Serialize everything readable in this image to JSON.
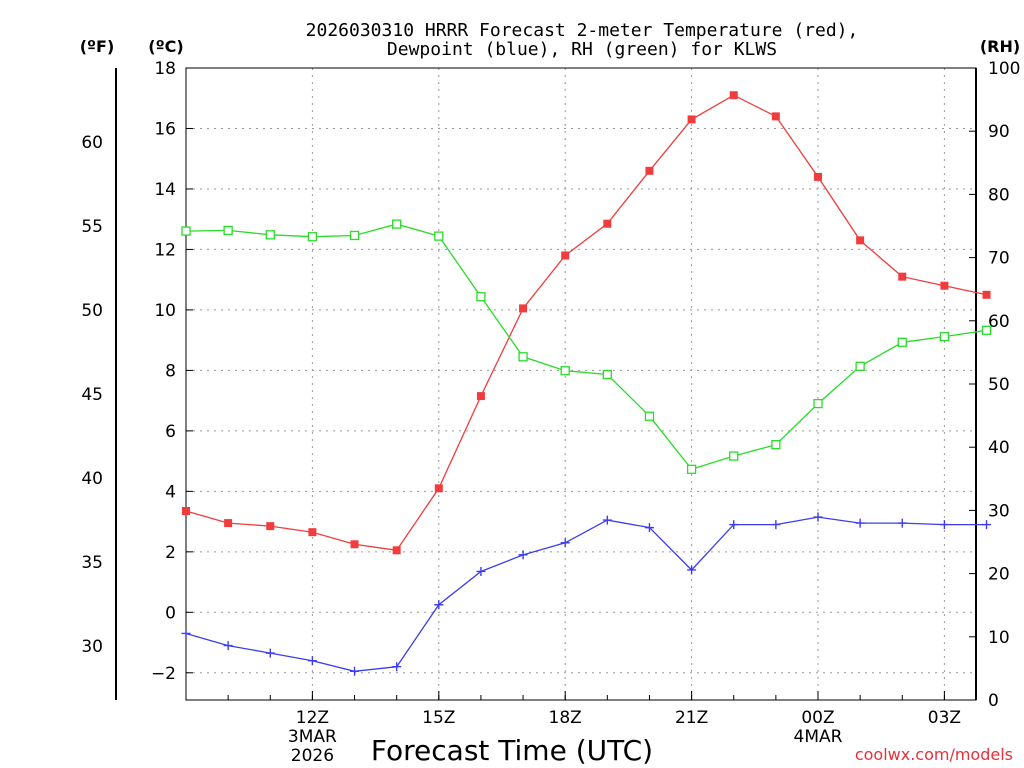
{
  "chart_data": {
    "type": "line",
    "title": "2026030310 HRRR Forecast 2-meter Temperature (red),",
    "subtitle": "Dewpoint (blue), RH (green) for KLWS",
    "xlabel": "Forecast Time (UTC)",
    "units": {
      "fahrenheit": "(ºF)",
      "celsius": "(ºC)",
      "rh": "(RH)"
    },
    "credit": "coolwx.com/models",
    "x_hours": [
      9,
      10,
      11,
      12,
      13,
      14,
      15,
      16,
      17,
      18,
      19,
      20,
      21,
      22,
      23,
      24,
      25,
      26,
      27,
      28
    ],
    "x_range": [
      9,
      27.75
    ],
    "x_ticks": [
      {
        "hour": 12,
        "label": "12Z",
        "date": "3MAR",
        "year": "2026"
      },
      {
        "hour": 15,
        "label": "15Z"
      },
      {
        "hour": 18,
        "label": "18Z"
      },
      {
        "hour": 21,
        "label": "21Z"
      },
      {
        "hour": 24,
        "label": "00Z",
        "date": "4MAR"
      },
      {
        "hour": 27,
        "label": "03Z"
      }
    ],
    "celsius_axis": {
      "range": [
        -2.9,
        18
      ],
      "ticks": [
        -2,
        0,
        2,
        4,
        6,
        8,
        10,
        12,
        14,
        16,
        18
      ]
    },
    "fahrenheit_axis": {
      "ticks": [
        30,
        35,
        40,
        45,
        50,
        55,
        60
      ]
    },
    "rh_axis": {
      "range": [
        0,
        100
      ],
      "ticks": [
        0,
        10,
        20,
        30,
        40,
        50,
        60,
        70,
        80,
        90,
        100
      ]
    },
    "series": [
      {
        "name": "Temperature",
        "axis": "celsius",
        "color": "#f03c3c",
        "marker": "filled-square",
        "values": [
          3.35,
          2.95,
          2.85,
          2.65,
          2.25,
          2.05,
          4.1,
          7.15,
          10.05,
          11.8,
          12.85,
          14.6,
          16.3,
          17.1,
          16.4,
          14.4,
          12.3,
          11.1,
          10.8,
          10.5
        ]
      },
      {
        "name": "Dewpoint",
        "axis": "celsius",
        "color": "#3c3cf0",
        "marker": "plus",
        "values": [
          -0.7,
          -1.1,
          -1.35,
          -1.6,
          -1.95,
          -1.8,
          0.25,
          1.35,
          1.9,
          2.3,
          3.05,
          2.8,
          1.4,
          2.9,
          2.9,
          3.15,
          2.95,
          2.95,
          2.9,
          2.9
        ]
      },
      {
        "name": "RH",
        "axis": "rh",
        "color": "#28dc28",
        "marker": "open-square",
        "values": [
          74.2,
          74.3,
          73.6,
          73.3,
          73.5,
          75.3,
          73.4,
          63.8,
          54.3,
          52.1,
          51.5,
          44.9,
          36.5,
          38.6,
          40.4,
          46.9,
          52.8,
          56.6,
          57.5,
          58.5
        ]
      }
    ]
  }
}
